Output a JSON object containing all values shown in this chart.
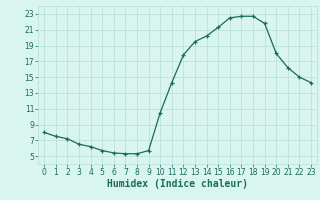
{
  "x": [
    0,
    1,
    2,
    3,
    4,
    5,
    6,
    7,
    8,
    9,
    10,
    11,
    12,
    13,
    14,
    15,
    16,
    17,
    18,
    19,
    20,
    21,
    22,
    23
  ],
  "y": [
    8.0,
    7.5,
    7.2,
    6.5,
    6.2,
    5.7,
    5.4,
    5.3,
    5.3,
    5.7,
    10.5,
    14.3,
    17.8,
    19.5,
    20.2,
    21.3,
    22.5,
    22.7,
    22.7,
    21.8,
    18.0,
    16.2,
    15.0,
    14.3
  ],
  "line_color": "#1a6b5a",
  "marker": "+",
  "marker_size": 3,
  "bg_color": "#d8f5f0",
  "grid_color": "#b8ddd8",
  "xlabel": "Humidex (Indice chaleur)",
  "xlim": [
    -0.5,
    23.5
  ],
  "ylim": [
    4,
    24
  ],
  "yticks": [
    5,
    7,
    9,
    11,
    13,
    15,
    17,
    19,
    21,
    23
  ],
  "xticks": [
    0,
    1,
    2,
    3,
    4,
    5,
    6,
    7,
    8,
    9,
    10,
    11,
    12,
    13,
    14,
    15,
    16,
    17,
    18,
    19,
    20,
    21,
    22,
    23
  ],
  "tick_fontsize": 5.5,
  "xlabel_fontsize": 7
}
